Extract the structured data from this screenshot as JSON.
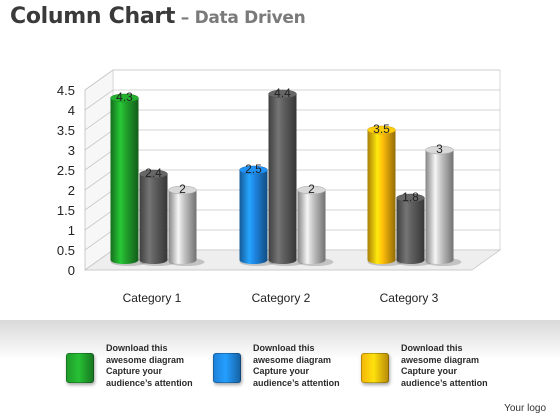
{
  "title": {
    "main": "Column Chart",
    "separator": " – ",
    "sub": "Data Driven"
  },
  "chart_data": {
    "type": "bar",
    "categories": [
      "Category 1",
      "Category 2",
      "Category 3"
    ],
    "series": [
      {
        "values": [
          4.3,
          2.5,
          3.5
        ]
      },
      {
        "values": [
          2.4,
          4.4,
          1.8
        ]
      },
      {
        "values": [
          2,
          2,
          3
        ]
      }
    ],
    "first_series_colors": [
      "#1f9a2a",
      "#1d7fd6",
      "#f2b40a"
    ],
    "series_colors": [
      "",
      "#5a5a5a",
      "#bdbdbd"
    ],
    "y_ticks": [
      "0",
      "0.5",
      "1",
      "1.5",
      "2",
      "2.5",
      "3",
      "3.5",
      "4",
      "4.5"
    ],
    "ylim": [
      0,
      4.5
    ],
    "data_labels": true,
    "grid": true,
    "xlabel": "",
    "ylabel": ""
  },
  "legend": [
    {
      "color": "#1f9a2a",
      "text": "Download this\nawesome diagram\nCapture your\naudience’s attention"
    },
    {
      "color": "#1d7fd6",
      "text": "Download this\nawesome diagram\nCapture your\naudience’s attention"
    },
    {
      "color": "#f2b40a",
      "text": "Download this\nawesome diagram\nCapture your\naudience’s attention"
    }
  ],
  "footer": "Your logo"
}
